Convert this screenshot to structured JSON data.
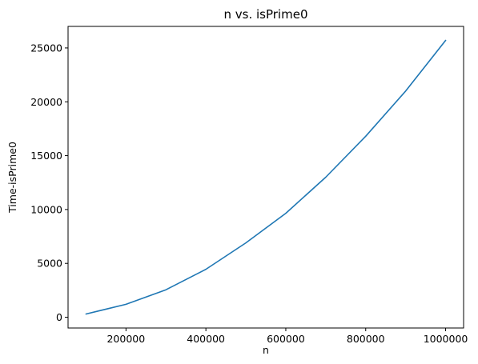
{
  "chart_data": {
    "type": "line",
    "title": "n vs. isPrime0",
    "xlabel": "n",
    "ylabel": "Time-isPrime0",
    "x": [
      100000,
      200000,
      300000,
      400000,
      500000,
      600000,
      700000,
      800000,
      900000,
      1000000
    ],
    "series": [
      {
        "values": [
          300,
          1200,
          2550,
          4450,
          6900,
          9650,
          13000,
          16800,
          21000,
          25700
        ],
        "color": "#1f77b4"
      }
    ],
    "xlim": [
      55000,
      1045000
    ],
    "ylim": [
      -1000,
      27000
    ],
    "xticks": [
      200000,
      400000,
      600000,
      800000,
      1000000
    ],
    "xtick_labels": [
      "200000",
      "400000",
      "600000",
      "800000",
      "1000000"
    ],
    "yticks": [
      0,
      5000,
      10000,
      15000,
      20000,
      25000
    ],
    "ytick_labels": [
      "0",
      "5000",
      "10000",
      "15000",
      "20000",
      "25000"
    ],
    "grid": false,
    "legend": "none"
  }
}
